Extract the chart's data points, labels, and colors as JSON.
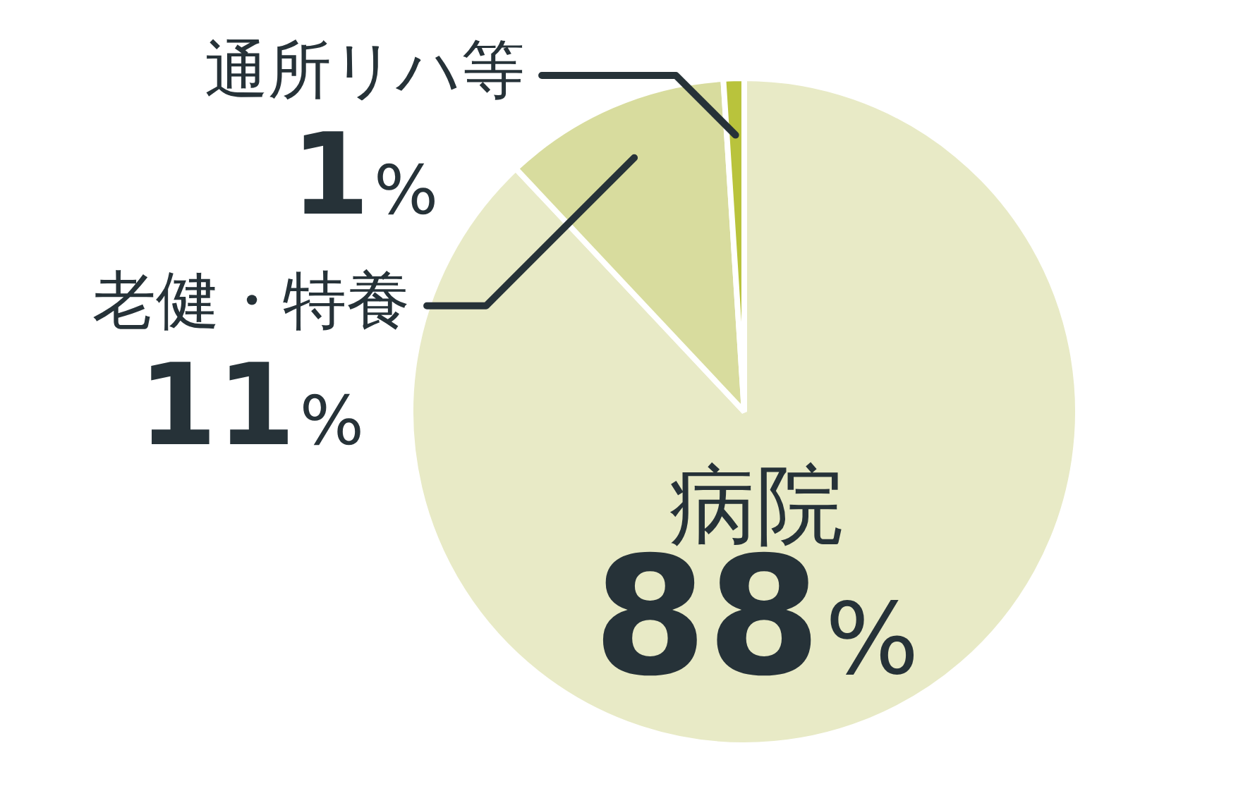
{
  "chart_data": {
    "type": "pie",
    "categories": [
      "病院",
      "老健・特養",
      "通所リハ等"
    ],
    "values": [
      88,
      11,
      1
    ],
    "colors": [
      "#e8eac6",
      "#d8dc9e",
      "#b9c33c"
    ],
    "value_labels": [
      "88%",
      "11%",
      "1%"
    ],
    "legend": false
  }
}
